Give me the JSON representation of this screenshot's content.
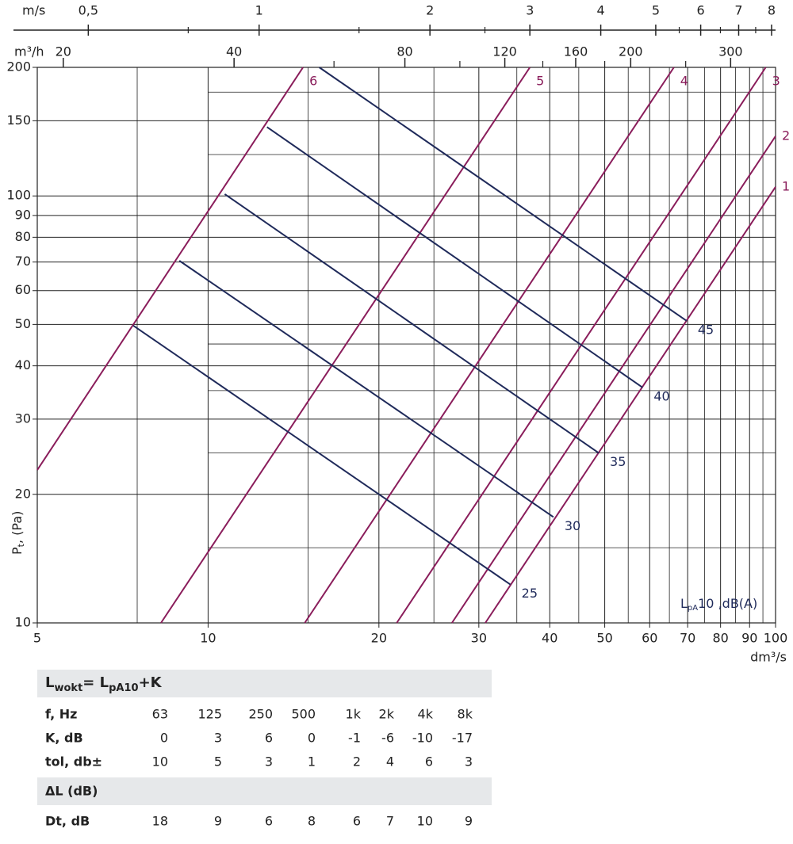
{
  "chart_data": {
    "type": "line",
    "xscale": "log",
    "yscale": "log",
    "x_label": "dm³/s",
    "y_label": {
      "main": "P",
      "sub": "t",
      "rest": ", (Pa)"
    },
    "xlim": [
      5,
      100
    ],
    "ylim": [
      10,
      200
    ],
    "xticks": [
      5,
      10,
      20,
      30,
      40,
      50,
      60,
      70,
      80,
      90,
      100
    ],
    "yticks": [
      10,
      20,
      30,
      40,
      50,
      60,
      70,
      80,
      90,
      100,
      150,
      200
    ],
    "xgrid_minor": [
      7.5,
      15,
      25,
      35,
      45,
      55,
      65,
      75,
      85,
      95
    ],
    "ygrid_minor": [
      15,
      25,
      35,
      45,
      125,
      175
    ],
    "grid": true,
    "top_axes": [
      {
        "label": "m/s",
        "xlim": [
          0.4065,
          8.13
        ],
        "xticks": [
          {
            "value": 0.5,
            "label": "0,5"
          },
          1,
          2,
          3,
          4,
          5,
          6,
          7,
          8
        ],
        "xminor": [
          0.75,
          1.5,
          2.5,
          5.5,
          6.5,
          7.5
        ]
      },
      {
        "label": "m³/h",
        "xlim": [
          18,
          360
        ],
        "xticks": [
          20,
          40,
          80,
          120,
          160,
          200,
          300
        ],
        "xminor": [
          60,
          100,
          140,
          180,
          250
        ]
      }
    ],
    "annotation": {
      "main": "L",
      "sub": "pA",
      "rest": "10 ,dB(A)"
    },
    "series": [
      {
        "name": "6",
        "color": "#8a1d5b",
        "x": [
          5,
          14.7
        ],
        "y": [
          22.8,
          200
        ]
      },
      {
        "name": "5",
        "color": "#8a1d5b",
        "x": [
          8.26,
          36.9
        ],
        "y": [
          10,
          200
        ]
      },
      {
        "name": "4",
        "color": "#8a1d5b",
        "x": [
          14.8,
          66.2
        ],
        "y": [
          10,
          200
        ]
      },
      {
        "name": "3",
        "color": "#8a1d5b",
        "x": [
          21.5,
          96.1
        ],
        "y": [
          10,
          200
        ]
      },
      {
        "name": "2",
        "color": "#8a1d5b",
        "x": [
          26.9,
          100
        ],
        "y": [
          10,
          138
        ]
      },
      {
        "name": "1",
        "color": "#8a1d5b",
        "x": [
          30.8,
          100
        ],
        "y": [
          10,
          105
        ]
      },
      {
        "name": "25",
        "color": "#1f2a5a",
        "x": [
          7.38,
          34.1
        ],
        "y": [
          49.7,
          12.3
        ]
      },
      {
        "name": "30",
        "color": "#1f2a5a",
        "x": [
          8.9,
          40.6
        ],
        "y": [
          70.5,
          17.7
        ]
      },
      {
        "name": "35",
        "color": "#1f2a5a",
        "x": [
          10.7,
          48.8
        ],
        "y": [
          101,
          25
        ]
      },
      {
        "name": "40",
        "color": "#1f2a5a",
        "x": [
          12.7,
          58.3
        ],
        "y": [
          145,
          35.6
        ]
      },
      {
        "name": "45",
        "color": "#1f2a5a",
        "x": [
          15.7,
          69.7
        ],
        "y": [
          200,
          51
        ]
      }
    ]
  },
  "table": {
    "formula": {
      "l1": "L",
      "sub1": "wokt",
      "mid": "= L",
      "sub2": "pA10",
      "end": "+K"
    },
    "rows": [
      [
        "f, Hz",
        "63",
        "125",
        "250",
        "500",
        "1k",
        "2k",
        "4k",
        "8k"
      ],
      [
        "K, dB",
        "0",
        "3",
        "6",
        "0",
        "-1",
        "-6",
        "-10",
        "-17"
      ],
      [
        "tol, db±",
        "10",
        "5",
        "3",
        "1",
        "2",
        "4",
        "6",
        "3"
      ]
    ],
    "section": "ΔL (dB)",
    "last_row": [
      "Dt, dB",
      "18",
      "9",
      "6",
      "8",
      "6",
      "7",
      "10",
      "9"
    ]
  }
}
